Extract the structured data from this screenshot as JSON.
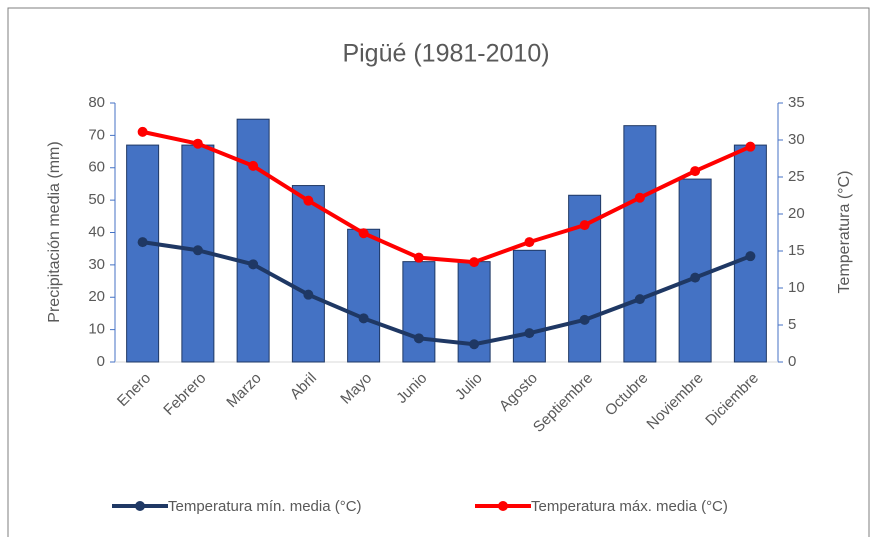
{
  "chart_data": {
    "type": "bar-line",
    "title": "Pigüé (1981-2010)",
    "ylabel": "Precipitación media (mm)",
    "y2label": "Temperatura (°C)",
    "categories": [
      "Enero",
      "Febrero",
      "Marzo",
      "Abril",
      "Mayo",
      "Junio",
      "Julio",
      "Agosto",
      "Septiembre",
      "Octubre",
      "Noviembre",
      "Diciembre"
    ],
    "series": [
      {
        "type": "bar",
        "color": "#4472c4",
        "values": [
          67,
          67,
          75,
          54.5,
          41,
          31,
          31,
          34.5,
          51.5,
          73,
          56.5,
          67
        ]
      },
      {
        "type": "line",
        "name": "Temperatura mín. media (°C)",
        "color": "#1f3864",
        "axis": "y2",
        "values": [
          16.2,
          15.1,
          13.2,
          9.1,
          5.9,
          3.2,
          2.4,
          3.9,
          5.7,
          8.5,
          11.4,
          14.3
        ]
      },
      {
        "type": "line",
        "name": "Temperatura máx. media (°C)",
        "color": "#ff0000",
        "axis": "y2",
        "values": [
          31.1,
          29.5,
          26.5,
          21.8,
          17.4,
          14.1,
          13.5,
          16.2,
          18.5,
          22.2,
          25.8,
          29.1
        ]
      }
    ],
    "ylim": [
      0,
      80
    ],
    "yticks": [
      0,
      10,
      20,
      30,
      40,
      50,
      60,
      70,
      80
    ],
    "y2lim": [
      0,
      35
    ],
    "y2ticks": [
      0,
      5,
      10,
      15,
      20,
      25,
      30,
      35
    ],
    "grid": false
  }
}
